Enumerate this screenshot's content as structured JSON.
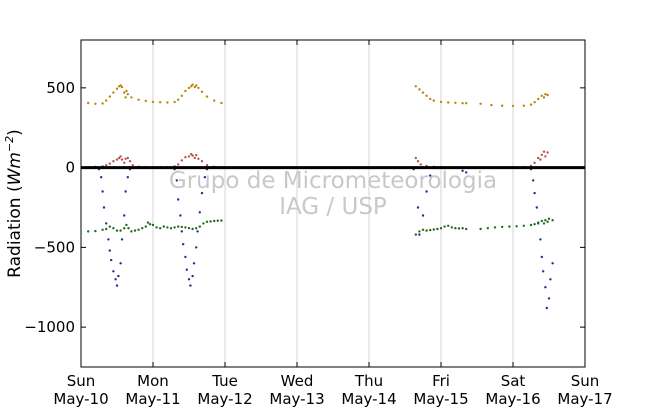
{
  "chart_data": {
    "type": "scatter",
    "ylabel": "Radiation (Wm^-2)",
    "ylabel_parts": {
      "prefix": "Radiation (",
      "unit": "Wm",
      "exponent": "−2",
      "suffix": ")"
    },
    "xlim": [
      0,
      7
    ],
    "ylim": [
      -1250,
      800
    ],
    "yticks": [
      500,
      0,
      -500,
      -1000
    ],
    "ytick_labels": [
      "500",
      "0",
      "−500",
      "−1000"
    ],
    "xticks": [
      0,
      1,
      2,
      3,
      4,
      5,
      6,
      7
    ],
    "xtick_labels_day": [
      "Sun",
      "Mon",
      "Tue",
      "Wed",
      "Thu",
      "Fri",
      "Sat",
      "Sun"
    ],
    "xtick_labels_date": [
      "May-10",
      "May-11",
      "May-12",
      "May-13",
      "May-14",
      "May-15",
      "May-16",
      "May-17"
    ],
    "grid": {
      "x": true,
      "y": false
    },
    "zero_line": true,
    "watermark": [
      "Grupo de Micrometeorologia",
      "IAG / USP"
    ],
    "series": [
      {
        "color": "#b8860b",
        "points": [
          [
            0.1,
            405
          ],
          [
            0.2,
            400
          ],
          [
            0.3,
            402
          ],
          [
            0.35,
            420
          ],
          [
            0.4,
            445
          ],
          [
            0.45,
            470
          ],
          [
            0.5,
            495
          ],
          [
            0.53,
            510
          ],
          [
            0.55,
            515
          ],
          [
            0.57,
            505
          ],
          [
            0.6,
            470
          ],
          [
            0.62,
            440
          ],
          [
            0.63,
            480
          ],
          [
            0.65,
            460
          ],
          [
            0.7,
            440
          ],
          [
            0.8,
            425
          ],
          [
            0.9,
            418
          ],
          [
            1.0,
            412
          ],
          [
            1.1,
            410
          ],
          [
            1.2,
            408
          ],
          [
            1.3,
            412
          ],
          [
            1.35,
            425
          ],
          [
            1.4,
            450
          ],
          [
            1.45,
            480
          ],
          [
            1.5,
            500
          ],
          [
            1.53,
            510
          ],
          [
            1.55,
            520
          ],
          [
            1.58,
            505
          ],
          [
            1.6,
            515
          ],
          [
            1.63,
            500
          ],
          [
            1.68,
            475
          ],
          [
            1.75,
            445
          ],
          [
            1.85,
            420
          ],
          [
            1.95,
            405
          ],
          [
            4.65,
            510
          ],
          [
            4.7,
            490
          ],
          [
            4.75,
            470
          ],
          [
            4.8,
            450
          ],
          [
            4.85,
            430
          ],
          [
            4.9,
            420
          ],
          [
            5.0,
            412
          ],
          [
            5.1,
            408
          ],
          [
            5.2,
            406
          ],
          [
            5.3,
            404
          ],
          [
            5.35,
            404
          ],
          [
            5.55,
            400
          ],
          [
            5.7,
            392
          ],
          [
            5.85,
            388
          ],
          [
            6.0,
            387
          ],
          [
            6.15,
            388
          ],
          [
            6.25,
            395
          ],
          [
            6.3,
            410
          ],
          [
            6.35,
            430
          ],
          [
            6.4,
            450
          ],
          [
            6.43,
            440
          ],
          [
            6.45,
            460
          ],
          [
            6.48,
            455
          ]
        ]
      },
      {
        "color": "#b85450",
        "points": [
          [
            0.1,
            2
          ],
          [
            0.2,
            5
          ],
          [
            0.3,
            8
          ],
          [
            0.35,
            15
          ],
          [
            0.4,
            25
          ],
          [
            0.45,
            40
          ],
          [
            0.5,
            50
          ],
          [
            0.53,
            60
          ],
          [
            0.55,
            70
          ],
          [
            0.57,
            50
          ],
          [
            0.6,
            30
          ],
          [
            0.62,
            55
          ],
          [
            0.65,
            60
          ],
          [
            0.68,
            40
          ],
          [
            0.72,
            15
          ],
          [
            0.8,
            6
          ],
          [
            0.9,
            3
          ],
          [
            1.0,
            2
          ],
          [
            1.1,
            2
          ],
          [
            1.2,
            3
          ],
          [
            1.3,
            8
          ],
          [
            1.35,
            20
          ],
          [
            1.4,
            45
          ],
          [
            1.45,
            65
          ],
          [
            1.5,
            70
          ],
          [
            1.53,
            85
          ],
          [
            1.55,
            75
          ],
          [
            1.58,
            60
          ],
          [
            1.6,
            78
          ],
          [
            1.63,
            55
          ],
          [
            1.68,
            40
          ],
          [
            1.75,
            15
          ],
          [
            1.85,
            5
          ],
          [
            1.95,
            3
          ],
          [
            4.65,
            60
          ],
          [
            4.68,
            40
          ],
          [
            4.72,
            20
          ],
          [
            4.8,
            10
          ],
          [
            4.9,
            5
          ],
          [
            5.0,
            3
          ],
          [
            5.1,
            2
          ],
          [
            5.2,
            2
          ],
          [
            5.35,
            2
          ],
          [
            5.55,
            2
          ],
          [
            5.7,
            2
          ],
          [
            5.85,
            2
          ],
          [
            6.0,
            2
          ],
          [
            6.15,
            3
          ],
          [
            6.25,
            10
          ],
          [
            6.3,
            30
          ],
          [
            6.35,
            60
          ],
          [
            6.38,
            50
          ],
          [
            6.4,
            80
          ],
          [
            6.43,
            100
          ],
          [
            6.45,
            70
          ],
          [
            6.48,
            95
          ]
        ]
      },
      {
        "color": "#2a2a90",
        "points": [
          [
            0.25,
            -10
          ],
          [
            0.28,
            -60
          ],
          [
            0.3,
            -150
          ],
          [
            0.32,
            -250
          ],
          [
            0.35,
            -350
          ],
          [
            0.38,
            -450
          ],
          [
            0.4,
            -520
          ],
          [
            0.42,
            -580
          ],
          [
            0.45,
            -650
          ],
          [
            0.48,
            -700
          ],
          [
            0.5,
            -740
          ],
          [
            0.52,
            -680
          ],
          [
            0.55,
            -600
          ],
          [
            0.57,
            -450
          ],
          [
            0.6,
            -300
          ],
          [
            0.62,
            -150
          ],
          [
            0.65,
            -60
          ],
          [
            0.68,
            -10
          ],
          [
            1.3,
            -10
          ],
          [
            1.33,
            -80
          ],
          [
            1.35,
            -200
          ],
          [
            1.38,
            -300
          ],
          [
            1.4,
            -400
          ],
          [
            1.42,
            -480
          ],
          [
            1.45,
            -560
          ],
          [
            1.47,
            -640
          ],
          [
            1.5,
            -700
          ],
          [
            1.52,
            -740
          ],
          [
            1.55,
            -680
          ],
          [
            1.57,
            -600
          ],
          [
            1.6,
            -500
          ],
          [
            1.62,
            -400
          ],
          [
            1.65,
            -280
          ],
          [
            1.68,
            -160
          ],
          [
            1.72,
            -60
          ],
          [
            1.75,
            -10
          ],
          [
            4.62,
            -10
          ],
          [
            4.65,
            -100
          ],
          [
            4.68,
            -250
          ],
          [
            4.7,
            -420
          ],
          [
            4.75,
            -300
          ],
          [
            4.8,
            -150
          ],
          [
            4.85,
            -50
          ],
          [
            5.3,
            -20
          ],
          [
            5.35,
            -30
          ],
          [
            6.25,
            -10
          ],
          [
            6.28,
            -80
          ],
          [
            6.3,
            -160
          ],
          [
            6.33,
            -250
          ],
          [
            6.35,
            -350
          ],
          [
            6.38,
            -450
          ],
          [
            6.4,
            -560
          ],
          [
            6.42,
            -650
          ],
          [
            6.45,
            -750
          ],
          [
            6.47,
            -880
          ],
          [
            6.5,
            -820
          ],
          [
            6.52,
            -700
          ],
          [
            6.55,
            -600
          ]
        ]
      },
      {
        "color": "#1f6b1f",
        "points": [
          [
            0.1,
            -400
          ],
          [
            0.2,
            -398
          ],
          [
            0.3,
            -390
          ],
          [
            0.35,
            -385
          ],
          [
            0.4,
            -370
          ],
          [
            0.45,
            -380
          ],
          [
            0.5,
            -395
          ],
          [
            0.55,
            -395
          ],
          [
            0.6,
            -380
          ],
          [
            0.63,
            -360
          ],
          [
            0.66,
            -380
          ],
          [
            0.7,
            -400
          ],
          [
            0.75,
            -395
          ],
          [
            0.8,
            -390
          ],
          [
            0.85,
            -380
          ],
          [
            0.9,
            -370
          ],
          [
            0.93,
            -345
          ],
          [
            0.96,
            -355
          ],
          [
            1.0,
            -360
          ],
          [
            1.05,
            -375
          ],
          [
            1.1,
            -380
          ],
          [
            1.15,
            -370
          ],
          [
            1.2,
            -375
          ],
          [
            1.25,
            -380
          ],
          [
            1.3,
            -375
          ],
          [
            1.35,
            -370
          ],
          [
            1.4,
            -372
          ],
          [
            1.45,
            -375
          ],
          [
            1.5,
            -380
          ],
          [
            1.55,
            -385
          ],
          [
            1.6,
            -380
          ],
          [
            1.65,
            -370
          ],
          [
            1.7,
            -350
          ],
          [
            1.75,
            -340
          ],
          [
            1.8,
            -338
          ],
          [
            1.85,
            -335
          ],
          [
            1.9,
            -333
          ],
          [
            1.95,
            -332
          ],
          [
            4.65,
            -420
          ],
          [
            4.7,
            -400
          ],
          [
            4.75,
            -390
          ],
          [
            4.8,
            -395
          ],
          [
            4.85,
            -392
          ],
          [
            4.9,
            -388
          ],
          [
            4.95,
            -385
          ],
          [
            5.0,
            -380
          ],
          [
            5.05,
            -370
          ],
          [
            5.1,
            -365
          ],
          [
            5.15,
            -375
          ],
          [
            5.2,
            -380
          ],
          [
            5.25,
            -382
          ],
          [
            5.3,
            -380
          ],
          [
            5.35,
            -385
          ],
          [
            5.55,
            -385
          ],
          [
            5.65,
            -380
          ],
          [
            5.75,
            -375
          ],
          [
            5.85,
            -372
          ],
          [
            5.95,
            -370
          ],
          [
            6.05,
            -368
          ],
          [
            6.15,
            -365
          ],
          [
            6.25,
            -360
          ],
          [
            6.3,
            -355
          ],
          [
            6.35,
            -345
          ],
          [
            6.4,
            -335
          ],
          [
            6.43,
            -350
          ],
          [
            6.45,
            -330
          ],
          [
            6.48,
            -340
          ],
          [
            6.5,
            -320
          ],
          [
            6.55,
            -330
          ]
        ]
      }
    ]
  }
}
